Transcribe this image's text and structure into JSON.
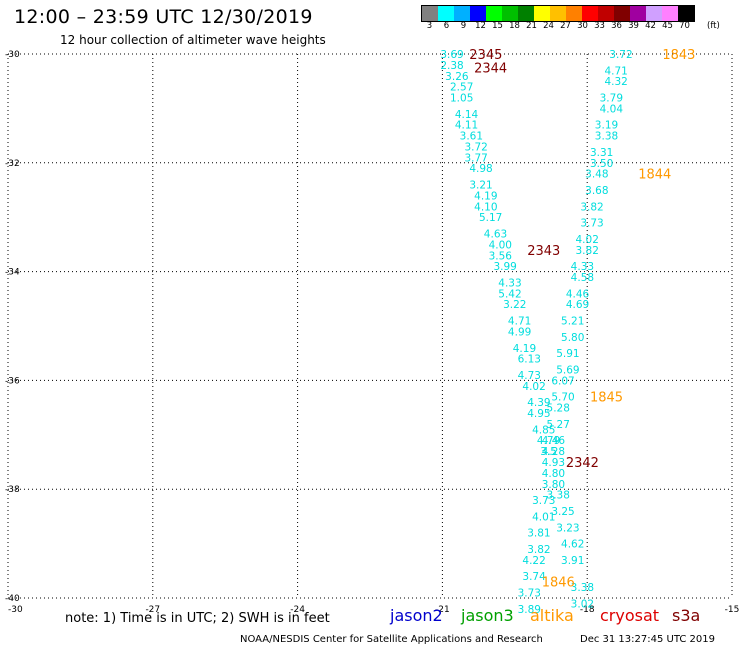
{
  "header": {
    "title": "12:00 – 23:59 UTC 12/30/2019",
    "subtitle": "12 hour collection of altimeter wave heights"
  },
  "legend": {
    "unit": "(ft)",
    "items": [
      {
        "label": "3",
        "color": "#808080"
      },
      {
        "label": "6",
        "color": "#00ffff"
      },
      {
        "label": "9",
        "color": "#00b0ff"
      },
      {
        "label": "12",
        "color": "#0000ff"
      },
      {
        "label": "15",
        "color": "#00ff00"
      },
      {
        "label": "18",
        "color": "#00c000"
      },
      {
        "label": "21",
        "color": "#008000"
      },
      {
        "label": "24",
        "color": "#ffff00"
      },
      {
        "label": "27",
        "color": "#ffc000"
      },
      {
        "label": "30",
        "color": "#ff8000"
      },
      {
        "label": "33",
        "color": "#ff0000"
      },
      {
        "label": "36",
        "color": "#c00000"
      },
      {
        "label": "39",
        "color": "#800000"
      },
      {
        "label": "42",
        "color": "#a000a0"
      },
      {
        "label": "45",
        "color": "#d0a0ff"
      },
      {
        "label": "70",
        "color": "#ff80ff"
      },
      {
        "label": "",
        "color": "#000000"
      }
    ]
  },
  "footer": {
    "note": "note: 1) Time is in UTC; 2) SWH is in feet",
    "satellites": [
      {
        "label": "jason2",
        "color": "#0000cc"
      },
      {
        "label": "jason3",
        "color": "#00a000"
      },
      {
        "label": "altika",
        "color": "#ff9900"
      },
      {
        "label": "cryosat",
        "color": "#dd0000"
      },
      {
        "label": "s3a",
        "color": "#800000"
      }
    ],
    "credit": "NOAA/NESDIS Center for Satellite Applications and Research",
    "timestamp": "Dec 31 13:27:45 UTC 2019"
  },
  "chart_data": {
    "type": "scatter",
    "xlim": [
      -30,
      -15
    ],
    "ylim": [
      -40,
      -30
    ],
    "x_ticks": [
      -30,
      -27,
      -24,
      -21,
      -18,
      -15
    ],
    "y_ticks": [
      -30,
      -32,
      -34,
      -36,
      -38,
      -40
    ],
    "grid": true,
    "series": [
      {
        "color": "#00dddd",
        "points": [
          {
            "x": -20.8,
            "y": -30.0,
            "v": "3.69"
          },
          {
            "x": -20.8,
            "y": -30.2,
            "v": "2.38"
          },
          {
            "x": -20.7,
            "y": -30.4,
            "v": "3.26"
          },
          {
            "x": -20.6,
            "y": -30.6,
            "v": "2.57"
          },
          {
            "x": -20.6,
            "y": -30.8,
            "v": "1.05"
          },
          {
            "x": -20.5,
            "y": -31.1,
            "v": "4.14"
          },
          {
            "x": -20.5,
            "y": -31.3,
            "v": "4.11"
          },
          {
            "x": -20.4,
            "y": -31.5,
            "v": "3.61"
          },
          {
            "x": -20.3,
            "y": -31.7,
            "v": "3.72"
          },
          {
            "x": -20.3,
            "y": -31.9,
            "v": "3.77"
          },
          {
            "x": -20.2,
            "y": -32.1,
            "v": "4.98"
          },
          {
            "x": -20.2,
            "y": -32.4,
            "v": "3.21"
          },
          {
            "x": -20.1,
            "y": -32.6,
            "v": "4.19"
          },
          {
            "x": -20.1,
            "y": -32.8,
            "v": "4.10"
          },
          {
            "x": -20.0,
            "y": -33.0,
            "v": "5.17"
          },
          {
            "x": -19.9,
            "y": -33.3,
            "v": "4.63"
          },
          {
            "x": -19.8,
            "y": -33.5,
            "v": "4.00"
          },
          {
            "x": -19.8,
            "y": -33.7,
            "v": "3.56"
          },
          {
            "x": -19.7,
            "y": -33.9,
            "v": "3.99"
          },
          {
            "x": -19.6,
            "y": -34.2,
            "v": "4.33"
          },
          {
            "x": -19.6,
            "y": -34.4,
            "v": "5.42"
          },
          {
            "x": -19.5,
            "y": -34.6,
            "v": "3.22"
          },
          {
            "x": -19.4,
            "y": -34.9,
            "v": "4.71"
          },
          {
            "x": -19.4,
            "y": -35.1,
            "v": "4.99"
          },
          {
            "x": -19.3,
            "y": -35.4,
            "v": "4.19"
          },
          {
            "x": -19.2,
            "y": -35.6,
            "v": "6.13"
          },
          {
            "x": -19.2,
            "y": -35.9,
            "v": "4.73"
          },
          {
            "x": -19.1,
            "y": -36.1,
            "v": "4.02"
          },
          {
            "x": -19.0,
            "y": -36.4,
            "v": "4.39"
          },
          {
            "x": -19.0,
            "y": -36.6,
            "v": "4.95"
          },
          {
            "x": -18.9,
            "y": -36.9,
            "v": "4.85"
          },
          {
            "x": -18.8,
            "y": -37.1,
            "v": "4.79"
          },
          {
            "x": -18.8,
            "y": -37.3,
            "v": "3.5"
          },
          {
            "x": -18.7,
            "y": -37.5,
            "v": "4.93"
          },
          {
            "x": -18.7,
            "y": -37.7,
            "v": "4.80"
          },
          {
            "x": -18.7,
            "y": -37.9,
            "v": "3.80"
          },
          {
            "x": -18.9,
            "y": -38.2,
            "v": "3.73"
          },
          {
            "x": -18.9,
            "y": -38.5,
            "v": "4.01"
          },
          {
            "x": -19.0,
            "y": -38.8,
            "v": "3.81"
          },
          {
            "x": -19.0,
            "y": -39.1,
            "v": "3.82"
          },
          {
            "x": -19.1,
            "y": -39.3,
            "v": "4.22"
          },
          {
            "x": -19.1,
            "y": -39.6,
            "v": "3.74"
          },
          {
            "x": -19.2,
            "y": -39.9,
            "v": "3.73"
          },
          {
            "x": -19.2,
            "y": -40.2,
            "v": "3.89"
          },
          {
            "x": -17.3,
            "y": -30.0,
            "v": "3.72"
          },
          {
            "x": -17.4,
            "y": -30.3,
            "v": "4.71"
          },
          {
            "x": -17.4,
            "y": -30.5,
            "v": "4.32"
          },
          {
            "x": -17.5,
            "y": -30.8,
            "v": "3.79"
          },
          {
            "x": -17.5,
            "y": -31.0,
            "v": "4.04"
          },
          {
            "x": -17.6,
            "y": -31.3,
            "v": "3.19"
          },
          {
            "x": -17.6,
            "y": -31.5,
            "v": "3.38"
          },
          {
            "x": -17.7,
            "y": -31.8,
            "v": "3.31"
          },
          {
            "x": -17.7,
            "y": -32.0,
            "v": "3.50"
          },
          {
            "x": -17.8,
            "y": -32.2,
            "v": "3.48"
          },
          {
            "x": -17.8,
            "y": -32.5,
            "v": "3.68"
          },
          {
            "x": -17.9,
            "y": -32.8,
            "v": "3.82"
          },
          {
            "x": -17.9,
            "y": -33.1,
            "v": "3.73"
          },
          {
            "x": -18.0,
            "y": -33.4,
            "v": "4.02"
          },
          {
            "x": -18.0,
            "y": -33.6,
            "v": "3.82"
          },
          {
            "x": -18.1,
            "y": -33.9,
            "v": "4.33"
          },
          {
            "x": -18.1,
            "y": -34.1,
            "v": "4.58"
          },
          {
            "x": -18.2,
            "y": -34.4,
            "v": "4.46"
          },
          {
            "x": -18.2,
            "y": -34.6,
            "v": "4.69"
          },
          {
            "x": -18.3,
            "y": -34.9,
            "v": "5.21"
          },
          {
            "x": -18.3,
            "y": -35.2,
            "v": "5.80"
          },
          {
            "x": -18.4,
            "y": -35.5,
            "v": "5.91"
          },
          {
            "x": -18.4,
            "y": -35.8,
            "v": "5.69"
          },
          {
            "x": -18.5,
            "y": -36.0,
            "v": "6.07"
          },
          {
            "x": -18.5,
            "y": -36.3,
            "v": "5.70"
          },
          {
            "x": -18.6,
            "y": -36.5,
            "v": "5.28"
          },
          {
            "x": -18.6,
            "y": -36.8,
            "v": "5.27"
          },
          {
            "x": -18.7,
            "y": -37.1,
            "v": "4.46"
          },
          {
            "x": -18.7,
            "y": -37.3,
            "v": "4.28"
          },
          {
            "x": -18.6,
            "y": -38.1,
            "v": "3.38"
          },
          {
            "x": -18.5,
            "y": -38.4,
            "v": "3.25"
          },
          {
            "x": -18.4,
            "y": -38.7,
            "v": "3.23"
          },
          {
            "x": -18.3,
            "y": -39.0,
            "v": "4.62"
          },
          {
            "x": -18.3,
            "y": -39.3,
            "v": "3.91"
          },
          {
            "x": -18.1,
            "y": -39.8,
            "v": "3.38"
          },
          {
            "x": -18.1,
            "y": -40.1,
            "v": "3.02"
          }
        ]
      }
    ],
    "time_labels": [
      {
        "x": -20.1,
        "y": -30.0,
        "v": "2345",
        "color": "#800000"
      },
      {
        "x": -20.0,
        "y": -30.25,
        "v": "2344",
        "color": "#800000"
      },
      {
        "x": -18.9,
        "y": -33.6,
        "v": "2343",
        "color": "#800000"
      },
      {
        "x": -18.1,
        "y": -37.5,
        "v": "2342",
        "color": "#800000"
      },
      {
        "x": -16.1,
        "y": -30.0,
        "v": "1843",
        "color": "#ff9900"
      },
      {
        "x": -16.6,
        "y": -32.2,
        "v": "1844",
        "color": "#ff9900"
      },
      {
        "x": -17.6,
        "y": -36.3,
        "v": "1845",
        "color": "#ff9900"
      },
      {
        "x": -18.6,
        "y": -39.7,
        "v": "1846",
        "color": "#ff9900"
      }
    ]
  }
}
